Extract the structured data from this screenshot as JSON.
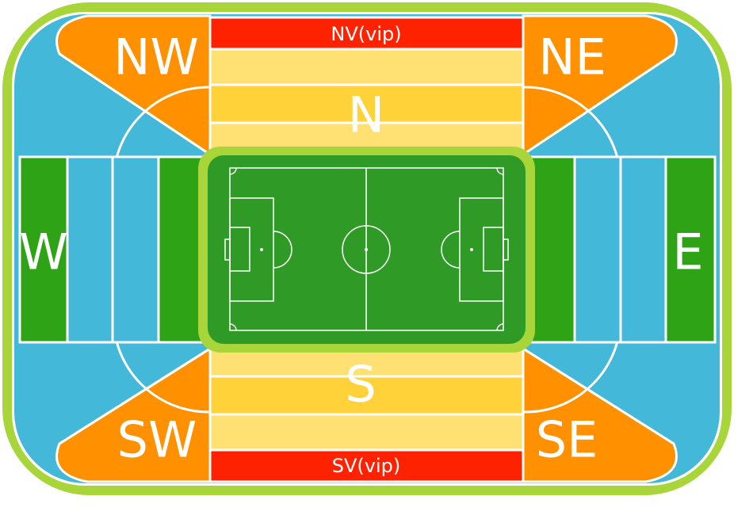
{
  "map": {
    "colors": {
      "outer_ring": "#a8d63a",
      "corner": "#ff9000",
      "stand_long": "#ffd23a",
      "stand_inner": "#ffe073",
      "vip": "#ff2200",
      "side_blue": "#44b8d8",
      "side_green": "#2ea316",
      "pitch": "#2f9a25",
      "pitch_frame": "#a8d63a"
    },
    "sections": {
      "nw": "NW",
      "ne": "NE",
      "sw": "SW",
      "se": "SE",
      "n": "N",
      "s": "S",
      "w": "W",
      "e": "E",
      "nv": "NV(vip)",
      "sv": "SV(vip)"
    }
  }
}
